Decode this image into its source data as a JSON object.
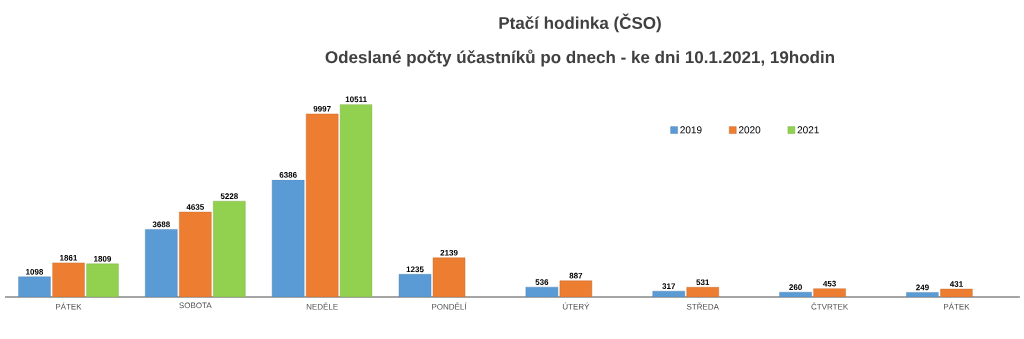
{
  "chart_data": {
    "type": "bar",
    "title": "Ptačí hodinka (ČSO)",
    "subtitle": "Odeslané počty účastníků po dnech - ke dni 10.1.2021, 19hodin",
    "categories": [
      "PÁTEK",
      "SOBOTA",
      "NEDĚLE",
      "PONDĚLÍ",
      "ÚTERÝ",
      "STŘEDA",
      "ČTVRTEK",
      "PÁTEK"
    ],
    "series": [
      {
        "name": "2019",
        "color": "#5b9bd5",
        "values": [
          1098,
          3688,
          6386,
          1235,
          536,
          317,
          260,
          249
        ]
      },
      {
        "name": "2020",
        "color": "#ed7d31",
        "values": [
          1861,
          4635,
          9997,
          2139,
          887,
          531,
          453,
          431
        ]
      },
      {
        "name": "2021",
        "color": "#92d050",
        "values": [
          1809,
          5228,
          10511,
          null,
          null,
          null,
          null,
          null
        ]
      }
    ],
    "legend": "top right",
    "data_labels": true,
    "tick_labels": "x"
  }
}
